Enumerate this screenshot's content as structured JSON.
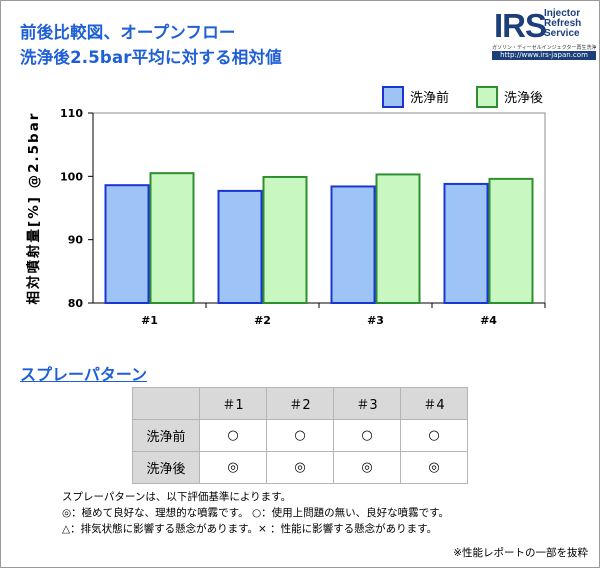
{
  "page": {
    "title_line1": "前後比較図、オープンフロー",
    "title_line2": "洗浄後2.5bar平均に対する相対値"
  },
  "logo": {
    "mark": "IRS",
    "words": [
      "Injector",
      "Refresh",
      "Service"
    ],
    "tagline": "ガソリン・ディーゼルインジェクター再生洗浄サービス",
    "url": "http://www.irs-japan.com"
  },
  "colors": {
    "title": "#1f5fd6",
    "before_fill": "#9ec3f5",
    "before_stroke": "#1a35d6",
    "after_fill": "#c9f7c1",
    "after_stroke": "#2f8f2f",
    "plot_bg": "#ffffff"
  },
  "chart_data": {
    "type": "bar",
    "categories": [
      "#1",
      "#2",
      "#3",
      "#4"
    ],
    "series": [
      {
        "name": "洗浄前",
        "values": [
          98.6,
          97.7,
          98.4,
          98.8
        ]
      },
      {
        "name": "洗浄後",
        "values": [
          100.5,
          99.9,
          100.3,
          99.6
        ]
      }
    ],
    "ylabel": "相対噴射量[%] @2.5bar",
    "ylim": [
      80,
      110
    ],
    "yticks": [
      80,
      90,
      100,
      110
    ],
    "legend_position": "top-right",
    "grid": false
  },
  "spray": {
    "title": "スプレーパターン",
    "columns": [
      "＃1",
      "＃2",
      "＃3",
      "＃4"
    ],
    "rows": [
      {
        "label": "洗浄前",
        "cells": [
          "○",
          "○",
          "○",
          "○"
        ]
      },
      {
        "label": "洗浄後",
        "cells": [
          "◎",
          "◎",
          "◎",
          "◎"
        ]
      }
    ]
  },
  "notes": [
    "スプレーパターンは、以下評価基準によります。",
    "◎：極めて良好な、理想的な噴霧です。 ○：使用上問題の無い、良好な噴霧です。",
    "△：排気状態に影響する懸念があります。× ：性能に影響する懸念があります。"
  ],
  "credit": "※性能レポートの一部を抜粋"
}
